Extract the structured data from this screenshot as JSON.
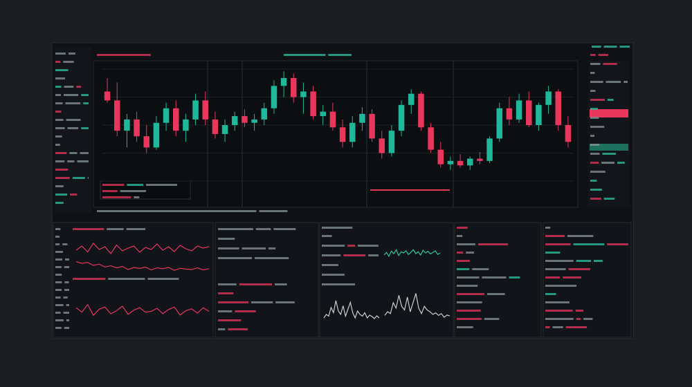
{
  "chart_data": [
    {
      "type": "candlestick",
      "up_color": "#1fb89a",
      "down_color": "#e8365d",
      "ylim": [
        0,
        100
      ],
      "grid": true,
      "open": [
        80,
        72,
        45,
        55,
        40,
        30,
        52,
        65,
        45,
        55,
        72,
        55,
        42,
        50,
        58,
        52,
        55,
        65,
        85,
        92,
        75,
        80,
        58,
        62,
        48,
        35,
        52,
        60,
        38,
        25,
        45,
        68,
        78,
        48,
        28,
        15,
        18,
        14,
        20,
        18,
        38,
        65,
        55,
        72,
        50,
        68,
        80,
        50
      ],
      "high": [
        92,
        88,
        60,
        62,
        50,
        58,
        70,
        72,
        60,
        78,
        80,
        62,
        55,
        62,
        64,
        60,
        70,
        90,
        98,
        96,
        88,
        85,
        68,
        70,
        55,
        58,
        66,
        64,
        45,
        50,
        72,
        82,
        80,
        52,
        35,
        22,
        24,
        22,
        26,
        40,
        70,
        75,
        78,
        80,
        70,
        85,
        82,
        58
      ],
      "low": [
        70,
        40,
        30,
        35,
        25,
        28,
        45,
        40,
        35,
        50,
        50,
        38,
        35,
        45,
        48,
        45,
        50,
        60,
        75,
        70,
        60,
        55,
        50,
        45,
        30,
        30,
        45,
        35,
        20,
        22,
        40,
        60,
        45,
        25,
        12,
        10,
        12,
        10,
        15,
        16,
        35,
        50,
        52,
        48,
        45,
        60,
        45,
        30
      ],
      "close": [
        72,
        45,
        55,
        40,
        30,
        52,
        65,
        45,
        55,
        72,
        55,
        42,
        50,
        58,
        52,
        55,
        65,
        85,
        92,
        75,
        80,
        58,
        62,
        48,
        35,
        52,
        60,
        38,
        25,
        45,
        68,
        78,
        48,
        28,
        15,
        18,
        14,
        20,
        18,
        38,
        65,
        55,
        72,
        50,
        68,
        80,
        50,
        35
      ]
    },
    {
      "type": "line",
      "color": "#e8365d",
      "ylim": [
        0,
        100
      ],
      "values": [
        60,
        72,
        55,
        80,
        62,
        70,
        50,
        75,
        58,
        66,
        72,
        54,
        68,
        62,
        78,
        60,
        70,
        56,
        74,
        64,
        58,
        72,
        66,
        70
      ]
    },
    {
      "type": "line",
      "color": "#e8365d",
      "ylim": [
        0,
        100
      ],
      "values": [
        78,
        70,
        74,
        60,
        66,
        52,
        58,
        48,
        55,
        40,
        50,
        45,
        52,
        38,
        48,
        44,
        50,
        36,
        46,
        42,
        40,
        48,
        38,
        44
      ]
    },
    {
      "type": "line",
      "color": "#e8365d",
      "ylim": [
        0,
        100
      ],
      "values": [
        70,
        55,
        80,
        45,
        65,
        72,
        50,
        60,
        75,
        48,
        62,
        70,
        55,
        58,
        68,
        50,
        64,
        72,
        46,
        60,
        66,
        52,
        70,
        58
      ]
    },
    {
      "type": "line",
      "color": "#2ec4a6",
      "ylim": [
        0,
        100
      ],
      "values": [
        50,
        60,
        45,
        65,
        55,
        70,
        48,
        62,
        58,
        66,
        52,
        60,
        70,
        55,
        62,
        50,
        68,
        58,
        64,
        54,
        60,
        66,
        52,
        58
      ]
    },
    {
      "type": "line",
      "color": "#c8d0d0",
      "ylim": [
        0,
        100
      ],
      "values": [
        30,
        40,
        35,
        60,
        45,
        80,
        50,
        40,
        65,
        35,
        55,
        75,
        45,
        30,
        50,
        40,
        35,
        45,
        30,
        38,
        34,
        28,
        36,
        30
      ]
    },
    {
      "type": "line",
      "color": "#c8d0d0",
      "ylim": [
        0,
        100
      ],
      "values": [
        35,
        45,
        40,
        70,
        55,
        90,
        60,
        50,
        85,
        45,
        70,
        95,
        55,
        40,
        60,
        50,
        45,
        38,
        42,
        35,
        40,
        30,
        36,
        34
      ]
    }
  ]
}
